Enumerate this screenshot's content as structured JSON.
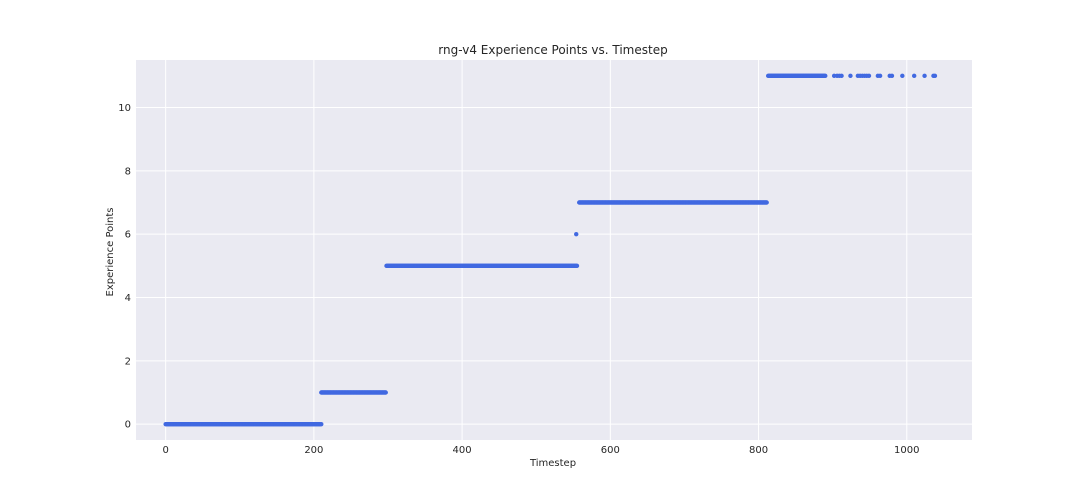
{
  "chart_data": {
    "type": "scatter",
    "title": "rng-v4 Experience Points vs. Timestep",
    "xlabel": "Timestep",
    "ylabel": "Experience Points",
    "xlim": [
      -40,
      1088
    ],
    "ylim": [
      -0.5,
      11.5
    ],
    "xticks": [
      0,
      200,
      400,
      600,
      800,
      1000
    ],
    "yticks": [
      0,
      2,
      4,
      6,
      8,
      10
    ],
    "grid": true,
    "color": "#4169e1",
    "background": "#eaeaf2",
    "segments": [
      {
        "y": 0,
        "x_start": 0,
        "x_end": 210
      },
      {
        "y": 1,
        "x_start": 210,
        "x_end": 297
      },
      {
        "y": 5,
        "x_start": 298,
        "x_end": 555
      },
      {
        "y": 7,
        "x_start": 558,
        "x_end": 811
      },
      {
        "y": 11,
        "x_start": 813,
        "x_end": 890
      }
    ],
    "points": [
      {
        "x": 554,
        "y": 6
      },
      {
        "x": 902,
        "y": 11
      },
      {
        "x": 906,
        "y": 11
      },
      {
        "x": 909,
        "y": 11
      },
      {
        "x": 912,
        "y": 11
      },
      {
        "x": 924,
        "y": 11
      },
      {
        "x": 934,
        "y": 11
      },
      {
        "x": 937,
        "y": 11
      },
      {
        "x": 940,
        "y": 11
      },
      {
        "x": 943,
        "y": 11
      },
      {
        "x": 946,
        "y": 11
      },
      {
        "x": 949,
        "y": 11
      },
      {
        "x": 961,
        "y": 11
      },
      {
        "x": 964,
        "y": 11
      },
      {
        "x": 977,
        "y": 11
      },
      {
        "x": 980,
        "y": 11
      },
      {
        "x": 994,
        "y": 11
      },
      {
        "x": 1010,
        "y": 11
      },
      {
        "x": 1024,
        "y": 11
      },
      {
        "x": 1036,
        "y": 11
      },
      {
        "x": 1038,
        "y": 11
      }
    ]
  }
}
